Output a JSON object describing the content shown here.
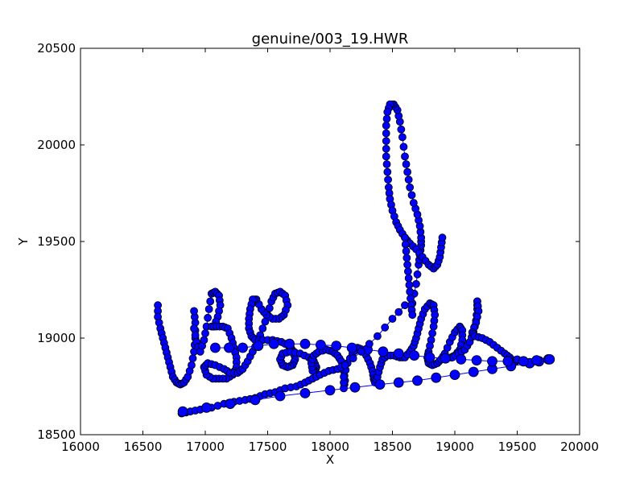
{
  "chart_data": {
    "type": "scatter",
    "title": "genuine/003_19.HWR",
    "xlabel": "X",
    "ylabel": "Y",
    "xlim": [
      16000,
      20000
    ],
    "ylim": [
      18500,
      20500
    ],
    "x_ticks": [
      "16000",
      "16500",
      "17000",
      "17500",
      "18000",
      "18500",
      "19000",
      "19500",
      "20000"
    ],
    "y_ticks": [
      "18500",
      "19000",
      "19500",
      "20000",
      "20500"
    ],
    "grid": false,
    "colors": {
      "marker": "#0000ff",
      "edge": "#000000",
      "line": "#0000ff"
    },
    "strokes": [
      {
        "points": [
          [
            16620,
            19170
          ],
          [
            16620,
            19110
          ],
          [
            16640,
            19050
          ],
          [
            16660,
            19000
          ],
          [
            16680,
            18950
          ],
          [
            16700,
            18900
          ],
          [
            16720,
            18850
          ],
          [
            16740,
            18800
          ],
          [
            16770,
            18770
          ],
          [
            16800,
            18760
          ],
          [
            16830,
            18770
          ],
          [
            16860,
            18800
          ],
          [
            16890,
            18860
          ],
          [
            16910,
            18930
          ],
          [
            16920,
            19000
          ],
          [
            16920,
            19080
          ],
          [
            16910,
            19140
          ]
        ]
      },
      {
        "points": [
          [
            16910,
            19050
          ],
          [
            16930,
            18980
          ],
          [
            16960,
            18930
          ],
          [
            16990,
            18990
          ],
          [
            17010,
            19060
          ],
          [
            17030,
            19150
          ],
          [
            17050,
            19230
          ],
          [
            17080,
            19240
          ],
          [
            17110,
            19220
          ],
          [
            17120,
            19170
          ],
          [
            17100,
            19110
          ],
          [
            17070,
            19060
          ],
          [
            17050,
            19060
          ],
          [
            17090,
            19060
          ],
          [
            17140,
            19060
          ],
          [
            17180,
            19050
          ],
          [
            17210,
            19000
          ],
          [
            17230,
            18950
          ],
          [
            17250,
            18900
          ],
          [
            17250,
            18850
          ],
          [
            17220,
            18810
          ],
          [
            17170,
            18790
          ],
          [
            17110,
            18790
          ],
          [
            17060,
            18790
          ],
          [
            17010,
            18810
          ],
          [
            16990,
            18850
          ],
          [
            17020,
            18870
          ],
          [
            17080,
            18860
          ],
          [
            17150,
            18840
          ],
          [
            17200,
            18820
          ],
          [
            17260,
            18820
          ],
          [
            17300,
            18840
          ],
          [
            17340,
            18880
          ],
          [
            17380,
            18930
          ],
          [
            17420,
            18980
          ],
          [
            17460,
            19050
          ],
          [
            17500,
            19120
          ],
          [
            17530,
            19190
          ],
          [
            17560,
            19230
          ],
          [
            17600,
            19240
          ],
          [
            17640,
            19220
          ],
          [
            17660,
            19170
          ],
          [
            17630,
            19120
          ],
          [
            17590,
            19100
          ],
          [
            17540,
            19100
          ],
          [
            17490,
            19120
          ],
          [
            17450,
            19150
          ],
          [
            17410,
            19200
          ],
          [
            17380,
            19200
          ],
          [
            17360,
            19150
          ],
          [
            17350,
            19100
          ],
          [
            17350,
            19050
          ],
          [
            17370,
            19010
          ],
          [
            17400,
            18990
          ],
          [
            17460,
            18990
          ],
          [
            17540,
            18990
          ],
          [
            17610,
            18980
          ],
          [
            17670,
            18960
          ],
          [
            17710,
            18930
          ],
          [
            17720,
            18890
          ],
          [
            17700,
            18860
          ],
          [
            17660,
            18850
          ],
          [
            17620,
            18860
          ],
          [
            17600,
            18890
          ],
          [
            17620,
            18920
          ],
          [
            17680,
            18930
          ],
          [
            17760,
            18920
          ],
          [
            17830,
            18900
          ],
          [
            17870,
            18880
          ],
          [
            17890,
            18850
          ],
          [
            17880,
            18830
          ],
          [
            17860,
            18830
          ],
          [
            17850,
            18870
          ],
          [
            17870,
            18910
          ],
          [
            17910,
            18930
          ],
          [
            17970,
            18940
          ],
          [
            18020,
            18930
          ],
          [
            18060,
            18910
          ],
          [
            18090,
            18880
          ],
          [
            18110,
            18830
          ],
          [
            18120,
            18780
          ],
          [
            18110,
            18740
          ],
          [
            18110,
            18800
          ],
          [
            18140,
            18870
          ],
          [
            18180,
            18920
          ],
          [
            18220,
            18950
          ],
          [
            18260,
            18940
          ],
          [
            18290,
            18910
          ],
          [
            18320,
            18870
          ],
          [
            18340,
            18830
          ],
          [
            18350,
            18790
          ],
          [
            18360,
            18770
          ],
          [
            18380,
            18800
          ],
          [
            18400,
            18850
          ],
          [
            18420,
            18890
          ],
          [
            18460,
            18910
          ],
          [
            18510,
            18910
          ],
          [
            18560,
            18900
          ],
          [
            18600,
            18900
          ],
          [
            18640,
            18930
          ],
          [
            18670,
            18960
          ],
          [
            18690,
            19000
          ],
          [
            18710,
            19050
          ],
          [
            18730,
            19100
          ],
          [
            18760,
            19150
          ],
          [
            18800,
            19180
          ],
          [
            18830,
            19170
          ],
          [
            18840,
            19120
          ],
          [
            18830,
            19060
          ],
          [
            18810,
            18990
          ],
          [
            18790,
            18930
          ],
          [
            18780,
            18900
          ],
          [
            18790,
            18870
          ],
          [
            18820,
            18860
          ],
          [
            18860,
            18870
          ],
          [
            18890,
            18890
          ],
          [
            18920,
            18920
          ],
          [
            18960,
            18980
          ],
          [
            19000,
            19030
          ],
          [
            19040,
            19060
          ],
          [
            19060,
            19040
          ],
          [
            19060,
            18990
          ],
          [
            19040,
            18940
          ],
          [
            19000,
            18910
          ],
          [
            18970,
            18900
          ],
          [
            18980,
            18900
          ],
          [
            19030,
            18920
          ],
          [
            19080,
            18940
          ],
          [
            19120,
            18980
          ],
          [
            19150,
            19030
          ],
          [
            19170,
            19090
          ],
          [
            19180,
            19150
          ],
          [
            19180,
            19190
          ]
        ]
      },
      {
        "points": [
          [
            19180,
            19190
          ],
          [
            19190,
            19140
          ],
          [
            19170,
            19080
          ],
          [
            19140,
            19030
          ],
          [
            19160,
            19010
          ],
          [
            19220,
            19000
          ],
          [
            19280,
            18980
          ],
          [
            19340,
            18950
          ],
          [
            19400,
            18920
          ],
          [
            19440,
            18900
          ],
          [
            19470,
            18880
          ],
          [
            19490,
            18880
          ],
          [
            19500,
            18890
          ]
        ]
      },
      {
        "points": [
          [
            16810,
            18610
          ],
          [
            16880,
            18620
          ],
          [
            16960,
            18630
          ],
          [
            17050,
            18640
          ],
          [
            17150,
            18660
          ],
          [
            17230,
            18670
          ],
          [
            17320,
            18680
          ],
          [
            17400,
            18690
          ],
          [
            17480,
            18710
          ],
          [
            17560,
            18720
          ],
          [
            17640,
            18740
          ],
          [
            17730,
            18750
          ],
          [
            17800,
            18770
          ],
          [
            17860,
            18790
          ],
          [
            17920,
            18810
          ],
          [
            17990,
            18830
          ],
          [
            18060,
            18840
          ],
          [
            18120,
            18860
          ]
        ]
      },
      {
        "points": [
          [
            16820,
            18620
          ],
          [
            17200,
            18660
          ],
          [
            17600,
            18700
          ],
          [
            18000,
            18730
          ],
          [
            18400,
            18760
          ],
          [
            18700,
            18780
          ],
          [
            19000,
            18810
          ],
          [
            19300,
            18840
          ],
          [
            19600,
            18870
          ],
          [
            19750,
            18890
          ]
        ]
      },
      {
        "points": [
          [
            17080,
            18950
          ],
          [
            17300,
            18950
          ],
          [
            17550,
            18970
          ],
          [
            17800,
            18970
          ],
          [
            18050,
            18960
          ],
          [
            18300,
            18940
          ],
          [
            18550,
            18920
          ],
          [
            18800,
            18900
          ],
          [
            19050,
            18890
          ],
          [
            19300,
            18880
          ],
          [
            19550,
            18880
          ],
          [
            19760,
            18890
          ]
        ]
      },
      {
        "points": [
          [
            18120,
            18860
          ],
          [
            18250,
            18930
          ],
          [
            18380,
            19010
          ],
          [
            18500,
            19100
          ],
          [
            18600,
            19170
          ]
        ]
      },
      {
        "points": [
          [
            18660,
            19180
          ],
          [
            18690,
            19280
          ],
          [
            18710,
            19380
          ],
          [
            18720,
            19430
          ],
          [
            18730,
            19480
          ],
          [
            18730,
            19520
          ],
          [
            18720,
            19580
          ],
          [
            18700,
            19640
          ],
          [
            18670,
            19700
          ],
          [
            18640,
            19780
          ],
          [
            18620,
            19860
          ],
          [
            18600,
            19940
          ],
          [
            18580,
            20040
          ],
          [
            18560,
            20120
          ],
          [
            18540,
            20180
          ],
          [
            18510,
            20210
          ],
          [
            18480,
            20210
          ],
          [
            18460,
            20170
          ],
          [
            18450,
            20100
          ],
          [
            18450,
            20020
          ],
          [
            18450,
            19940
          ],
          [
            18460,
            19860
          ],
          [
            18470,
            19780
          ],
          [
            18480,
            19720
          ],
          [
            18500,
            19660
          ],
          [
            18530,
            19600
          ],
          [
            18560,
            19560
          ],
          [
            18600,
            19520
          ],
          [
            18640,
            19490
          ],
          [
            18690,
            19460
          ],
          [
            18740,
            19420
          ],
          [
            18790,
            19380
          ],
          [
            18830,
            19360
          ],
          [
            18860,
            19380
          ],
          [
            18880,
            19420
          ],
          [
            18890,
            19470
          ],
          [
            18900,
            19520
          ]
        ]
      },
      {
        "points": [
          [
            18600,
            19520
          ],
          [
            18610,
            19450
          ],
          [
            18620,
            19380
          ],
          [
            18630,
            19310
          ],
          [
            18640,
            19240
          ],
          [
            18650,
            19170
          ],
          [
            18660,
            19120
          ]
        ]
      }
    ]
  }
}
